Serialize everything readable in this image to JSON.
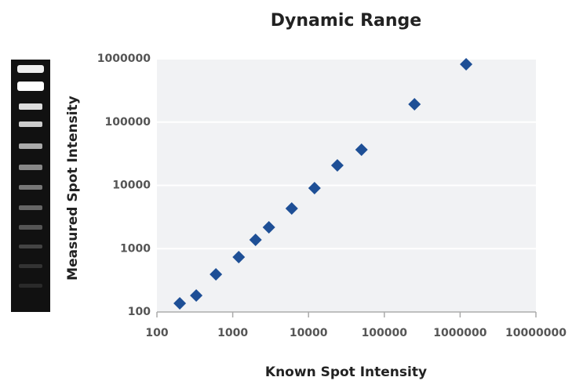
{
  "chart_data": {
    "type": "scatter",
    "title": "Dynamic Range",
    "xlabel": "Known Spot Intensity",
    "ylabel": "Measured Spot Intensity",
    "x": [
      200,
      330,
      600,
      1200,
      2000,
      3000,
      6000,
      12000,
      24000,
      50000,
      250000,
      1200000
    ],
    "y": [
      137,
      182,
      393,
      736,
      1377,
      2174,
      4313,
      9060,
      20700,
      36600,
      191000,
      819000
    ],
    "color": "#1e4f96",
    "xlim": [
      100,
      10000000
    ],
    "ylim": [
      100,
      1000000
    ],
    "xticks": [
      100,
      1000,
      10000,
      100000,
      1000000,
      10000000
    ],
    "yticks": [
      100,
      1000,
      10000,
      100000,
      1000000
    ],
    "xlog": true,
    "ylog": true,
    "grid": true
  }
}
